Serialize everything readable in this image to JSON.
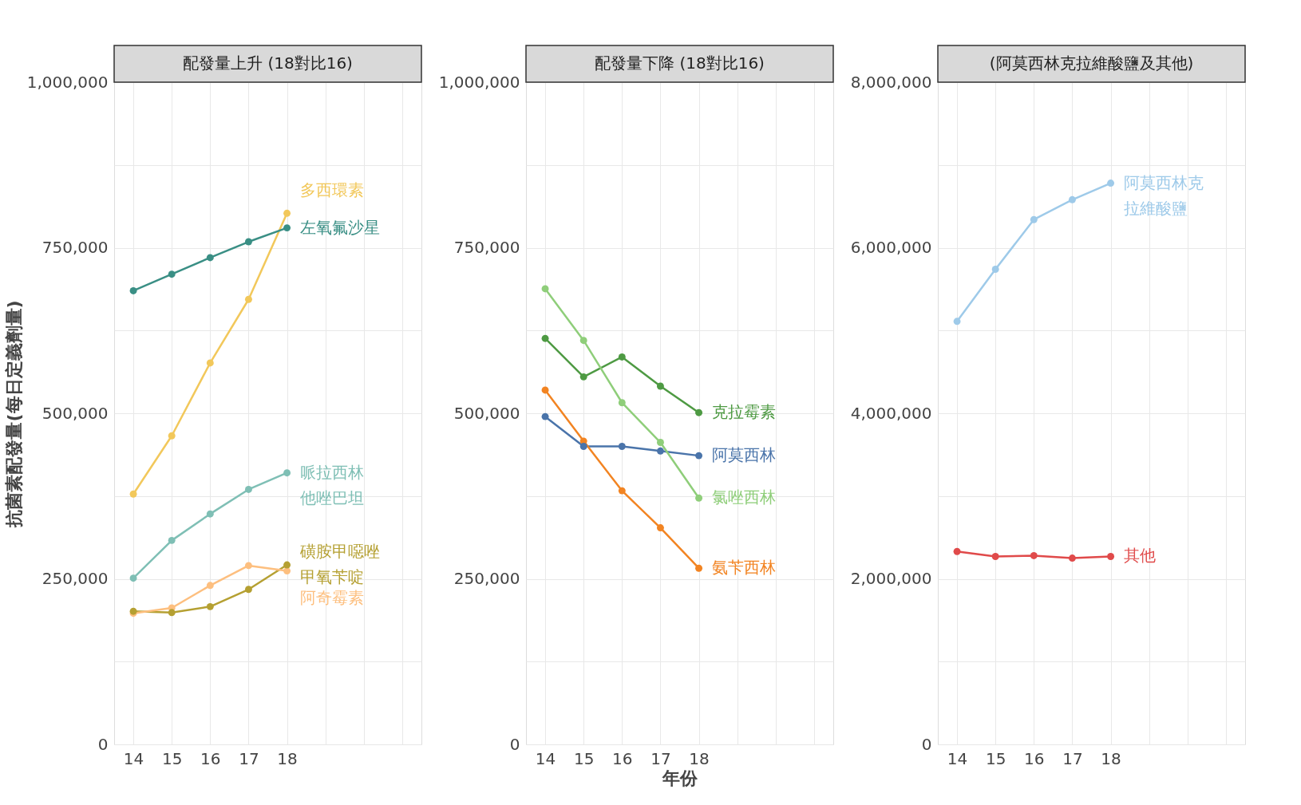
{
  "chart_data": [
    {
      "type": "line",
      "title": "配發量上升 (18對比16)",
      "ylabel": "抗菌素配發量(每日定義劑量)",
      "x": [
        14,
        15,
        16,
        17,
        18
      ],
      "xlim": [
        13.5,
        21.5
      ],
      "xticks": [
        14,
        15,
        16,
        17,
        18,
        {
          "value": 19,
          "label": null
        },
        {
          "value": 20,
          "label": null
        },
        {
          "value": 21,
          "label": null
        }
      ],
      "ylim": [
        0,
        1000000
      ],
      "yticks": [
        {
          "value": 0,
          "label": "0"
        },
        {
          "value": 125000,
          "label": null
        },
        {
          "value": 250000,
          "label": "250,000"
        },
        {
          "value": 375000,
          "label": null
        },
        {
          "value": 500000,
          "label": "500,000"
        },
        {
          "value": 625000,
          "label": null
        },
        {
          "value": 750000,
          "label": "750,000"
        },
        {
          "value": 875000,
          "label": null
        },
        {
          "value": 1000000,
          "label": "1,000,000"
        }
      ],
      "grid": true,
      "legend": false,
      "marker": "circle",
      "line_style": "solid",
      "series": [
        {
          "name": "多西環素",
          "color": "#f2c85b",
          "values": [
            378000,
            466000,
            576000,
            672000,
            802000
          ]
        },
        {
          "name": "左氧氟沙星",
          "color": "#3a8f85",
          "values": [
            685000,
            710000,
            735000,
            759000,
            780000
          ]
        },
        {
          "name": "哌拉西林他唑巴坦",
          "color": "#7fbfb5",
          "values": [
            251000,
            308000,
            348000,
            385000,
            410000
          ]
        },
        {
          "name": "磺胺甲噁唑甲氧苄啶",
          "color": "#b5a032",
          "values": [
            201000,
            199000,
            208000,
            234000,
            271000
          ]
        },
        {
          "name": "阿奇霉素",
          "color": "#fdbf7f",
          "values": [
            198000,
            206000,
            240000,
            270000,
            262000
          ]
        }
      ]
    },
    {
      "type": "line",
      "title": "配發量下降 (18對比16)",
      "xlabel": "年份",
      "x": [
        14,
        15,
        16,
        17,
        18
      ],
      "xlim": [
        13.5,
        21.5
      ],
      "xticks": [
        14,
        15,
        16,
        17,
        18,
        {
          "value": 19,
          "label": null
        },
        {
          "value": 20,
          "label": null
        },
        {
          "value": 21,
          "label": null
        }
      ],
      "ylim": [
        0,
        1000000
      ],
      "yticks": [
        {
          "value": 0,
          "label": "0"
        },
        {
          "value": 125000,
          "label": null
        },
        {
          "value": 250000,
          "label": "250,000"
        },
        {
          "value": 375000,
          "label": null
        },
        {
          "value": 500000,
          "label": "500,000"
        },
        {
          "value": 625000,
          "label": null
        },
        {
          "value": 750000,
          "label": "750,000"
        },
        {
          "value": 875000,
          "label": null
        },
        {
          "value": 1000000,
          "label": "1,000,000"
        }
      ],
      "grid": true,
      "legend": false,
      "marker": "circle",
      "line_style": "solid",
      "series": [
        {
          "name": "克拉霉素",
          "color": "#4e9a43",
          "values": [
            613000,
            555000,
            585000,
            541000,
            501000
          ]
        },
        {
          "name": "阿莫西林",
          "color": "#4a74aa",
          "values": [
            495000,
            450000,
            450000,
            443000,
            436000
          ]
        },
        {
          "name": "氯唑西林",
          "color": "#8fce7a",
          "values": [
            688000,
            610000,
            516000,
            456000,
            372000
          ]
        },
        {
          "name": "氨苄西林",
          "color": "#f28422",
          "values": [
            535000,
            458000,
            383000,
            327000,
            266000
          ]
        }
      ]
    },
    {
      "type": "line",
      "title": "(阿莫西林克拉維酸鹽及其他)",
      "x": [
        14,
        15,
        16,
        17,
        18
      ],
      "xlim": [
        13.5,
        21.5
      ],
      "xticks": [
        14,
        15,
        16,
        17,
        18,
        {
          "value": 19,
          "label": null
        },
        {
          "value": 20,
          "label": null
        },
        {
          "value": 21,
          "label": null
        }
      ],
      "ylim": [
        0,
        8000000
      ],
      "yticks": [
        {
          "value": 0,
          "label": "0"
        },
        {
          "value": 1000000,
          "label": null
        },
        {
          "value": 2000000,
          "label": "2,000,000"
        },
        {
          "value": 3000000,
          "label": null
        },
        {
          "value": 4000000,
          "label": "4,000,000"
        },
        {
          "value": 5000000,
          "label": null
        },
        {
          "value": 6000000,
          "label": "6,000,000"
        },
        {
          "value": 7000000,
          "label": null
        },
        {
          "value": 8000000,
          "label": "8,000,000"
        }
      ],
      "grid": true,
      "legend": false,
      "marker": "circle",
      "line_style": "solid",
      "series": [
        {
          "name": "阿莫西林克拉維酸鹽",
          "color": "#9ecae9",
          "values": [
            5110000,
            5740000,
            6340000,
            6580000,
            6780000
          ]
        },
        {
          "name": "其他",
          "color": "#e04a4a",
          "values": [
            2330000,
            2270000,
            2280000,
            2250000,
            2270000
          ]
        }
      ]
    }
  ]
}
